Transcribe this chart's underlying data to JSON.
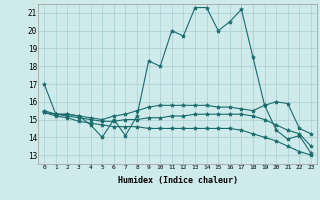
{
  "background_color": "#ceeaea",
  "grid_color": "#aacece",
  "line_color": "#1a6b6b",
  "marker": "*",
  "marker_size": 3,
  "xlabel": "Humidex (Indice chaleur)",
  "xlim": [
    -0.5,
    23.5
  ],
  "ylim": [
    12.5,
    21.5
  ],
  "yticks": [
    13,
    14,
    15,
    16,
    17,
    18,
    19,
    20,
    21
  ],
  "xticks": [
    0,
    1,
    2,
    3,
    4,
    5,
    6,
    7,
    8,
    9,
    10,
    11,
    12,
    13,
    14,
    15,
    16,
    17,
    18,
    19,
    20,
    21,
    22,
    23
  ],
  "series": [
    {
      "x": [
        0,
        1,
        2,
        3,
        4,
        5,
        6,
        7,
        8,
        9,
        10,
        11,
        12,
        13,
        14,
        15,
        16,
        17,
        18,
        19,
        20,
        21,
        22,
        23
      ],
      "y": [
        17.0,
        15.3,
        15.3,
        15.2,
        14.7,
        14.0,
        15.0,
        14.1,
        15.2,
        18.3,
        18.0,
        20.0,
        19.7,
        21.3,
        21.3,
        20.0,
        20.5,
        21.2,
        18.5,
        15.8,
        14.4,
        13.9,
        14.1,
        13.1
      ]
    },
    {
      "x": [
        0,
        1,
        2,
        3,
        4,
        5,
        6,
        7,
        8,
        9,
        10,
        11,
        12,
        13,
        14,
        15,
        16,
        17,
        18,
        19,
        20,
        21,
        22,
        23
      ],
      "y": [
        15.5,
        15.3,
        15.3,
        15.2,
        15.1,
        15.0,
        15.2,
        15.3,
        15.5,
        15.7,
        15.8,
        15.8,
        15.8,
        15.8,
        15.8,
        15.7,
        15.7,
        15.6,
        15.5,
        15.8,
        16.0,
        15.9,
        14.5,
        14.2
      ]
    },
    {
      "x": [
        0,
        1,
        2,
        3,
        4,
        5,
        6,
        7,
        8,
        9,
        10,
        11,
        12,
        13,
        14,
        15,
        16,
        17,
        18,
        19,
        20,
        21,
        22,
        23
      ],
      "y": [
        15.4,
        15.3,
        15.2,
        15.1,
        15.0,
        14.9,
        14.9,
        15.0,
        15.0,
        15.1,
        15.1,
        15.2,
        15.2,
        15.3,
        15.3,
        15.3,
        15.3,
        15.3,
        15.2,
        15.0,
        14.7,
        14.4,
        14.2,
        13.5
      ]
    },
    {
      "x": [
        0,
        1,
        2,
        3,
        4,
        5,
        6,
        7,
        8,
        9,
        10,
        11,
        12,
        13,
        14,
        15,
        16,
        17,
        18,
        19,
        20,
        21,
        22,
        23
      ],
      "y": [
        15.4,
        15.2,
        15.1,
        14.9,
        14.8,
        14.7,
        14.6,
        14.6,
        14.6,
        14.5,
        14.5,
        14.5,
        14.5,
        14.5,
        14.5,
        14.5,
        14.5,
        14.4,
        14.2,
        14.0,
        13.8,
        13.5,
        13.2,
        13.0
      ]
    }
  ]
}
